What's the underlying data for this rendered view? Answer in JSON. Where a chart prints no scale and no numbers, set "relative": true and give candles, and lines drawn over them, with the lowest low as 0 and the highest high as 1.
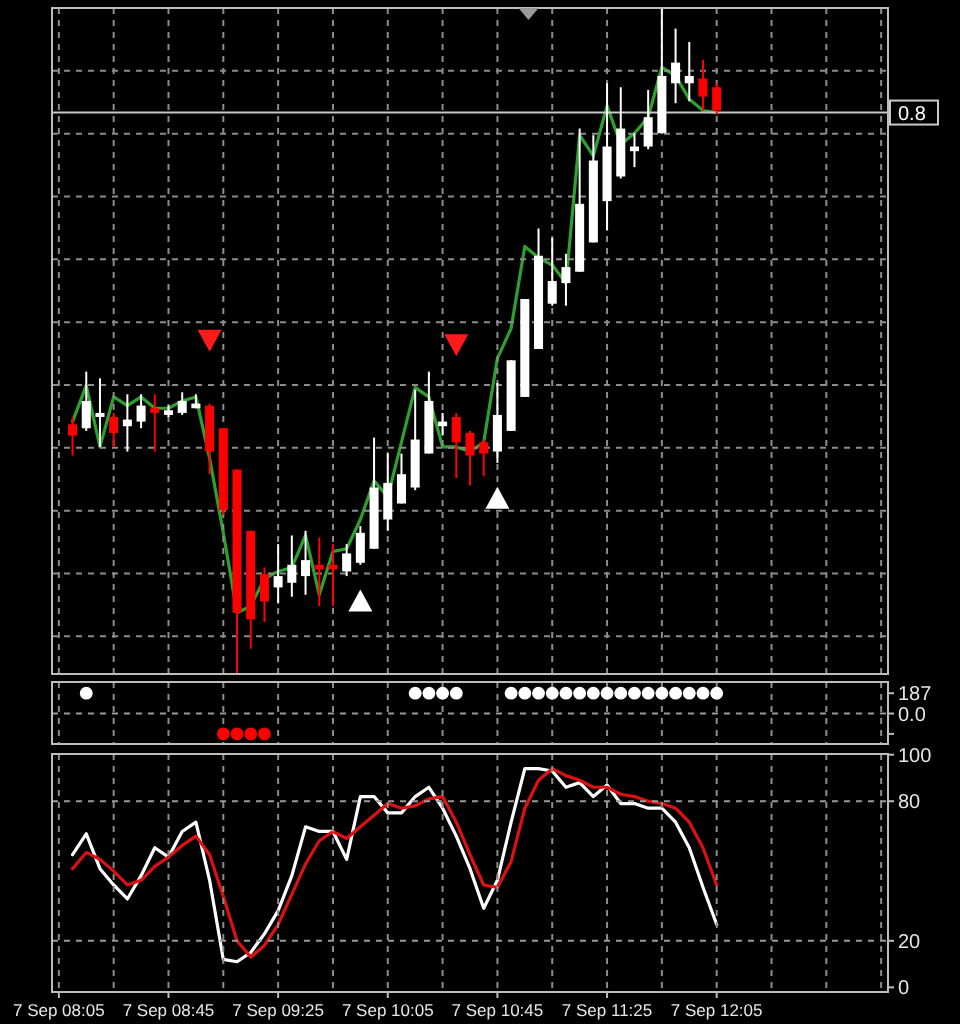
{
  "chart_data": [
    {
      "type": "candlestick",
      "relative": true,
      "categories": [
        null,
        null,
        null,
        null,
        null,
        null,
        null,
        null,
        null,
        null,
        null,
        null,
        null,
        null,
        null,
        null,
        null,
        null,
        null,
        null,
        null,
        null,
        null,
        null,
        null,
        null,
        null,
        null,
        null,
        null,
        null,
        null,
        null,
        null,
        null,
        null,
        null,
        null,
        null,
        null,
        null,
        null,
        null,
        null,
        null,
        null,
        null,
        null,
        null,
        null,
        null,
        null,
        null,
        null,
        null,
        null,
        null,
        null,
        null,
        null,
        null
      ],
      "ohlc": [
        null,
        [
          0.375,
          0.386,
          0.328,
          0.358
        ],
        [
          0.369,
          0.454,
          0.365,
          0.41
        ],
        [
          0.386,
          0.444,
          0.341,
          0.392
        ],
        [
          0.386,
          0.392,
          0.341,
          0.362
        ],
        [
          0.372,
          0.42,
          0.334,
          0.382
        ],
        [
          0.379,
          0.42,
          0.369,
          0.403
        ],
        [
          0.399,
          0.42,
          0.334,
          0.392
        ],
        [
          0.389,
          0.403,
          0.386,
          0.396
        ],
        [
          0.392,
          0.423,
          0.389,
          0.41
        ],
        [
          0.399,
          0.42,
          0.399,
          0.406
        ],
        [
          0.403,
          0.406,
          0.3,
          0.334
        ],
        [
          0.369,
          0.369,
          0.239,
          0.246
        ],
        [
          0.307,
          0.307,
          0,
          0.092
        ],
        [
          0.215,
          0.215,
          0.038,
          0.082
        ],
        [
          0.15,
          0.16,
          0.078,
          0.109
        ],
        [
          0.13,
          0.195,
          0.106,
          0.147
        ],
        [
          0.137,
          0.208,
          0.116,
          0.164
        ],
        [
          0.147,
          0.215,
          0.119,
          0.171
        ],
        [
          0.164,
          0.205,
          0.102,
          0.157
        ],
        [
          0.164,
          0.195,
          0.102,
          0.157
        ],
        [
          0.154,
          0.195,
          0.147,
          0.181
        ],
        [
          0.167,
          0.222,
          0.164,
          0.212
        ],
        [
          0.188,
          0.355,
          0.188,
          0.28
        ],
        [
          0.232,
          0.331,
          0.215,
          0.287
        ],
        [
          0.256,
          0.331,
          0.256,
          0.3
        ],
        [
          0.28,
          0.427,
          0.276,
          0.352
        ],
        [
          0.331,
          0.454,
          0.331,
          0.41
        ],
        [
          0.372,
          0.392,
          0.358,
          0.379
        ],
        [
          0.386,
          0.392,
          0.294,
          0.348
        ],
        [
          0.362,
          0.365,
          0.283,
          0.328
        ],
        [
          0.348,
          0.352,
          0.297,
          0.331
        ],
        [
          0.334,
          0.437,
          0.317,
          0.389
        ],
        [
          0.365,
          0.471,
          0.365,
          0.471
        ],
        [
          0.416,
          0.563,
          0.416,
          0.563
        ],
        [
          0.488,
          0.669,
          0.488,
          0.628
        ],
        [
          0.556,
          0.655,
          0.553,
          0.59
        ],
        [
          0.587,
          0.631,
          0.553,
          0.611
        ],
        [
          0.604,
          0.819,
          0.604,
          0.706
        ],
        [
          0.648,
          0.809,
          0.648,
          0.771
        ],
        [
          0.71,
          0.887,
          0.666,
          0.792
        ],
        [
          0.747,
          0.881,
          0.744,
          0.819
        ],
        [
          0.785,
          0.812,
          0.761,
          0.792
        ],
        [
          0.792,
          0.877,
          0.788,
          0.836
        ],
        [
          0.812,
          1,
          0.812,
          0.898
        ],
        [
          0.887,
          0.969,
          0.857,
          0.918
        ],
        [
          0.887,
          0.949,
          0.86,
          0.898
        ],
        [
          0.894,
          0.922,
          0.846,
          0.867
        ],
        [
          0.881,
          0.887,
          0.84,
          0.846
        ],
        null,
        null,
        null,
        null,
        null,
        null,
        null,
        null,
        null,
        null,
        null,
        null
      ],
      "colors": [
        null,
        "#ff0000",
        "#ffffff",
        "#ffffff",
        "#ff0000",
        "#ffffff",
        "#ffffff",
        "#ff0000",
        "#ffffff",
        "#ffffff",
        "#ffffff",
        "#ff0000",
        "#ff0000",
        "#ff0000",
        "#ff0000",
        "#ff0000",
        "#ffffff",
        "#ffffff",
        "#ffffff",
        "#ff0000",
        "#ff0000",
        "#ffffff",
        "#ffffff",
        "#ffffff",
        "#ffffff",
        "#ffffff",
        "#ffffff",
        "#ffffff",
        "#ffffff",
        "#ff0000",
        "#ff0000",
        "#ff0000",
        "#ffffff",
        "#ffffff",
        "#ffffff",
        "#ffffff",
        "#ffffff",
        "#ffffff",
        "#ffffff",
        "#ffffff",
        "#ffffff",
        "#ffffff",
        "#ffffff",
        "#ffffff",
        "#ffffff",
        "#ffffff",
        "#ffffff",
        "#ff0000",
        "#ff0000",
        null,
        null,
        null,
        null,
        null,
        null,
        null,
        null,
        null,
        null,
        null,
        null
      ],
      "series": [
        {
          "type": "line",
          "color": "#2ea02e",
          "values": [
            null,
            0.379,
            0.433,
            0.341,
            0.416,
            0.403,
            0.416,
            0.399,
            0.399,
            0.41,
            0.416,
            0.324,
            0.212,
            0.092,
            0.102,
            0.143,
            0.154,
            0.16,
            0.208,
            0.119,
            0.184,
            0.188,
            0.232,
            0.29,
            0.266,
            0.348,
            0.43,
            0.416,
            0.341,
            0.341,
            0.334,
            0.348,
            0.474,
            0.519,
            0.642,
            0.625,
            0.614,
            0.587,
            0.809,
            0.778,
            0.853,
            0.795,
            0.812,
            0.836,
            0.911,
            0.898,
            0.863,
            0.846,
            0.843,
            null,
            null,
            null,
            null,
            null,
            null,
            null,
            null,
            null,
            null,
            null,
            null
          ]
        },
        {
          "type": "scatter",
          "marker": "triangle",
          "color": "#ff1a1a",
          "values": [
            null,
            null,
            null,
            null,
            null,
            null,
            null,
            null,
            null,
            null,
            null,
            0.502,
            null,
            null,
            null,
            null,
            null,
            null,
            null,
            null,
            null,
            null,
            null,
            null,
            null,
            null,
            null,
            null,
            null,
            0.495,
            null,
            null,
            null,
            null,
            null,
            null,
            null,
            null,
            null,
            null,
            null,
            null,
            null,
            null,
            null,
            null,
            null,
            null,
            null,
            null,
            null,
            null,
            null,
            null,
            null,
            null,
            null,
            null,
            null,
            null,
            null
          ]
        },
        {
          "type": "scatter",
          "marker": "triangle",
          "color": "#ffffff",
          "values": [
            null,
            null,
            null,
            null,
            null,
            null,
            null,
            null,
            null,
            null,
            null,
            null,
            null,
            null,
            null,
            null,
            null,
            null,
            null,
            null,
            null,
            null,
            0.109,
            null,
            null,
            null,
            null,
            null,
            null,
            null,
            null,
            null,
            0.263,
            null,
            null,
            null,
            null,
            null,
            null,
            null,
            null,
            null,
            null,
            null,
            null,
            null,
            null,
            null,
            null,
            null,
            null,
            null,
            null,
            null,
            null,
            null,
            null,
            null,
            null,
            null,
            null
          ]
        }
      ],
      "ref_lines": [
        {
          "axis": "y",
          "value": 0.843,
          "label": "0.8",
          "color": "#c8c8c8",
          "line_style": "solid"
        }
      ],
      "grid": true,
      "tick_labels": "y"
    },
    {
      "type": "scatter",
      "marker": "circle",
      "categories": [
        null,
        null,
        null,
        null,
        null,
        null,
        null,
        null,
        null,
        null,
        null,
        null,
        null,
        null,
        null,
        null,
        null,
        null,
        null,
        null,
        null,
        null,
        null,
        null,
        null,
        null,
        null,
        null,
        null,
        null,
        null,
        null,
        null,
        null,
        null,
        null,
        null,
        null,
        null,
        null,
        null,
        null,
        null,
        null,
        null,
        null,
        null,
        null,
        null,
        null,
        null,
        null,
        null,
        null,
        null,
        null,
        null,
        null,
        null,
        null,
        null
      ],
      "series": [
        {
          "color": "#ffffff",
          "values": [
            null,
            null,
            187,
            null,
            null,
            null,
            null,
            null,
            null,
            null,
            null,
            null,
            null,
            null,
            null,
            null,
            null,
            null,
            null,
            null,
            null,
            null,
            null,
            null,
            null,
            null,
            187,
            187,
            187,
            187,
            null,
            null,
            null,
            187,
            187,
            187,
            187,
            187,
            187,
            187,
            187,
            187,
            187,
            187,
            187,
            187,
            187,
            187,
            187,
            null,
            null,
            null,
            null,
            null,
            null,
            null,
            null,
            null,
            null,
            null,
            null
          ]
        },
        {
          "color": "#ff0000",
          "values": [
            null,
            null,
            null,
            null,
            null,
            null,
            null,
            null,
            null,
            null,
            null,
            null,
            -187,
            -187,
            -187,
            -187,
            null,
            null,
            null,
            null,
            null,
            null,
            null,
            null,
            null,
            null,
            null,
            null,
            null,
            null,
            null,
            null,
            null,
            null,
            null,
            null,
            null,
            null,
            null,
            null,
            null,
            null,
            null,
            null,
            null,
            null,
            null,
            null,
            null,
            null,
            null,
            null,
            null,
            null,
            null,
            null,
            null,
            null,
            null,
            null,
            null
          ]
        }
      ],
      "ylim": [
        -280,
        290
      ],
      "yticks": [
        187,
        {
          "value": 0,
          "label": "0.0"
        },
        {
          "value": -187,
          "label": null
        }
      ],
      "ref_lines": [
        {
          "axis": "y",
          "value": 0,
          "color": "#9a9a9a",
          "line_style": "dashed"
        }
      ],
      "grid": "x",
      "tick_labels": "y"
    },
    {
      "type": "line",
      "categories": [
        "7 Sep 08:05",
        null,
        null,
        null,
        null,
        null,
        null,
        null,
        "7 Sep 08:45",
        null,
        null,
        null,
        null,
        null,
        null,
        null,
        "7 Sep 09:25",
        null,
        null,
        null,
        null,
        null,
        null,
        null,
        "7 Sep 10:05",
        null,
        null,
        null,
        null,
        null,
        null,
        null,
        "7 Sep 10:45",
        null,
        null,
        null,
        null,
        null,
        null,
        null,
        "7 Sep 11:25",
        null,
        null,
        null,
        null,
        null,
        null,
        null,
        "7 Sep 12:05",
        null,
        null,
        null,
        null,
        null,
        null,
        null,
        null,
        null,
        null,
        null,
        null
      ],
      "series": [
        {
          "color": "#ffffff",
          "values": [
            null,
            57,
            66,
            51,
            44,
            38,
            48,
            60,
            56,
            67,
            71,
            46,
            12,
            11,
            15,
            23,
            33,
            48,
            69,
            67,
            67,
            55,
            82,
            82,
            75,
            75,
            82,
            86,
            77,
            65,
            51,
            34,
            46,
            71,
            94,
            94,
            93,
            86,
            88,
            82,
            87,
            79,
            79,
            77,
            77,
            71,
            60,
            43,
            27,
            null,
            null,
            null,
            null,
            null,
            null,
            null,
            null,
            null,
            null,
            null,
            null
          ]
        },
        {
          "color": "#dd1111",
          "values": [
            null,
            51,
            58,
            55,
            50,
            44,
            46,
            52,
            56,
            61,
            65,
            57,
            39,
            20,
            13,
            18,
            27,
            40,
            53,
            63,
            67,
            64,
            69,
            74,
            79,
            77,
            78,
            81,
            82,
            71,
            57,
            44,
            43,
            54,
            77,
            89,
            94,
            91,
            89,
            86,
            86,
            83,
            82,
            80,
            79,
            77,
            71,
            60,
            44,
            null,
            null,
            null,
            null,
            null,
            null,
            null,
            null,
            null,
            null,
            null,
            null
          ]
        }
      ],
      "ylim": [
        -2,
        100.3
      ],
      "yticks": [
        100,
        80,
        20,
        0
      ],
      "ref_lines": [
        {
          "axis": "y",
          "value": 80,
          "color": "#9a9a9a",
          "line_style": "dashed"
        },
        {
          "axis": "y",
          "value": 20,
          "color": "#9a9a9a",
          "line_style": "dashed"
        }
      ],
      "grid": "x"
    }
  ]
}
